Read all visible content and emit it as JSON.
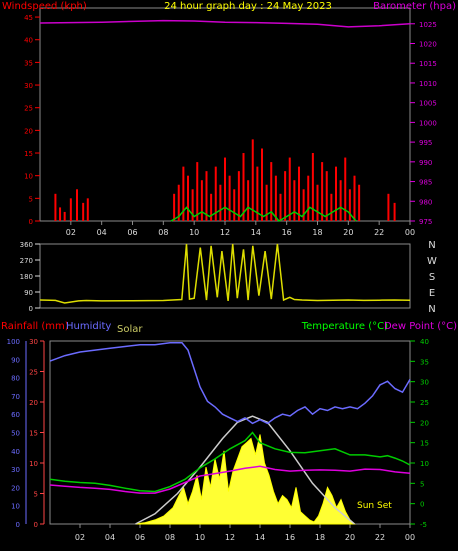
{
  "chart_data": [
    {
      "id": "wind-baro",
      "type": "line",
      "title": "24 hour graph day : 24 May 2023",
      "left_axis_label": "Windspeed (kph)",
      "right_axis_label": "Barometer (hpa)",
      "left_ticks": [
        0,
        5,
        10,
        15,
        20,
        25,
        30,
        35,
        40,
        45
      ],
      "right_ticks": [
        975,
        980,
        985,
        990,
        995,
        1000,
        1005,
        1010,
        1015,
        1020,
        1025
      ],
      "x_ticks": [
        "02",
        "04",
        "06",
        "08",
        "10",
        "12",
        "14",
        "16",
        "18",
        "20",
        "22",
        "00"
      ],
      "ylim_left": [
        0,
        47
      ],
      "ylim_right": [
        975,
        1029
      ],
      "series": [
        {
          "name": "Windspeed (kph)",
          "color": "#ff0000",
          "hours": [
            1.0,
            1.3,
            1.6,
            2.0,
            2.4,
            2.8,
            3.1,
            8.7,
            9.0,
            9.3,
            9.6,
            9.9,
            10.2,
            10.5,
            10.8,
            11.1,
            11.4,
            11.7,
            12.0,
            12.3,
            12.6,
            12.9,
            13.2,
            13.5,
            13.8,
            14.1,
            14.4,
            14.7,
            15.0,
            15.3,
            15.6,
            15.9,
            16.2,
            16.5,
            16.8,
            17.1,
            17.4,
            17.7,
            18.0,
            18.3,
            18.6,
            18.9,
            19.2,
            19.5,
            19.8,
            20.1,
            20.4,
            20.7,
            22.6,
            23.0
          ],
          "values": [
            6,
            3,
            2,
            5,
            7,
            4,
            5,
            6,
            8,
            12,
            10,
            7,
            13,
            9,
            11,
            6,
            12,
            8,
            14,
            10,
            7,
            11,
            15,
            9,
            18,
            12,
            16,
            8,
            13,
            10,
            6,
            11,
            14,
            9,
            12,
            7,
            10,
            15,
            8,
            13,
            11,
            6,
            12,
            9,
            14,
            7,
            10,
            8,
            6,
            4
          ]
        },
        {
          "name": "Wind average",
          "color": "#00cc00",
          "hours": [
            8.5,
            9,
            9.5,
            10,
            10.5,
            11,
            11.5,
            12,
            12.5,
            13,
            13.5,
            14,
            14.5,
            15,
            15.5,
            16,
            16.5,
            17,
            17.5,
            18,
            18.5,
            19,
            19.5,
            20,
            20.5
          ],
          "values": [
            0,
            1,
            3,
            1,
            2,
            1,
            2,
            3,
            2,
            1,
            3,
            2,
            1,
            2,
            0,
            1,
            2,
            1,
            3,
            2,
            1,
            2,
            3,
            2,
            0
          ]
        },
        {
          "name": "Barometer (hpa)",
          "color": "#cc00cc",
          "hours": [
            0,
            2,
            4,
            6,
            8,
            10,
            12,
            14,
            16,
            18,
            20,
            22,
            24
          ],
          "values": [
            1025.2,
            1025.3,
            1025.4,
            1025.6,
            1025.8,
            1025.7,
            1025.4,
            1025.3,
            1025.1,
            1024.9,
            1024.2,
            1024.5,
            1025.0
          ]
        }
      ]
    },
    {
      "id": "wind-dir",
      "type": "line",
      "left_ticks": [
        0,
        90,
        180,
        270,
        360
      ],
      "right_labels": [
        "N",
        "W",
        "S",
        "E",
        "N"
      ],
      "ylim": [
        0,
        360
      ],
      "series": [
        {
          "name": "Wind direction",
          "color": "#dddd00",
          "hours": [
            0,
            1.0,
            1.6,
            2.5,
            3.0,
            4,
            6,
            8,
            8.6,
            9.2,
            9.5,
            9.7,
            10,
            10.4,
            10.8,
            11.1,
            11.5,
            11.8,
            12.2,
            12.5,
            12.8,
            13.2,
            13.5,
            13.8,
            14.2,
            14.6,
            15.0,
            15.4,
            15.8,
            16.2,
            16.5,
            17,
            18,
            19,
            20,
            21,
            22,
            23,
            24
          ],
          "values": [
            45,
            43,
            28,
            40,
            42,
            40,
            41,
            42,
            45,
            48,
            360,
            50,
            55,
            340,
            45,
            350,
            60,
            320,
            40,
            360,
            55,
            330,
            45,
            350,
            70,
            320,
            50,
            360,
            45,
            60,
            48,
            45,
            42,
            44,
            45,
            43,
            44,
            45,
            44
          ]
        }
      ]
    },
    {
      "id": "temp-rain",
      "type": "area",
      "left_label_rainfall": "Rainfall (mm)",
      "left_label_humidity": "Humidity",
      "solar_label": "Solar",
      "right_label_temperature": "Temperature (°C)",
      "right_label_dewpoint": "Dew Point (°C)",
      "annotation": "Sun Set",
      "humidity_ticks": [
        0,
        10,
        20,
        30,
        40,
        50,
        60,
        70,
        80,
        90,
        100
      ],
      "rainfall_ticks": [
        0,
        5,
        10,
        15,
        20,
        25,
        30
      ],
      "temperature_ticks": [
        -5,
        0,
        5,
        10,
        15,
        20,
        25,
        30,
        35,
        40
      ],
      "x_ticks": [
        "02",
        "04",
        "06",
        "08",
        "10",
        "12",
        "14",
        "16",
        "18",
        "20",
        "22",
        "00"
      ],
      "ylim_temperature": [
        -5,
        40
      ],
      "series": [
        {
          "name": "Humidity",
          "color": "#6b6bff",
          "hours": [
            0,
            1,
            2,
            3,
            4,
            5,
            6,
            7,
            8,
            8.8,
            9.2,
            9.6,
            10,
            10.5,
            11,
            11.5,
            12,
            12.5,
            13,
            13.5,
            14,
            14.5,
            15,
            15.5,
            16,
            16.5,
            17,
            17.5,
            18,
            18.5,
            19,
            19.5,
            20,
            20.5,
            21,
            21.5,
            22,
            22.5,
            23,
            23.5,
            24
          ],
          "values": [
            89,
            92,
            94,
            95,
            96,
            97,
            98,
            98,
            99,
            99,
            95,
            85,
            75,
            67,
            64,
            60,
            58,
            56,
            58,
            55,
            57,
            55,
            58,
            60,
            59,
            62,
            64,
            60,
            63,
            62,
            64,
            63,
            64,
            63,
            66,
            70,
            76,
            78,
            74,
            72,
            79
          ]
        },
        {
          "name": "Temperature (°C)",
          "color": "#00cc00",
          "hours": [
            0,
            1,
            2,
            3,
            4,
            5,
            6,
            7,
            8,
            9,
            10,
            11,
            12,
            13,
            13.5,
            14,
            15,
            16,
            17,
            18,
            19,
            20,
            21,
            22,
            22.5,
            23,
            23.5,
            24
          ],
          "values": [
            6,
            5.5,
            5.2,
            5.0,
            4.5,
            3.8,
            3.2,
            3.0,
            4.2,
            6,
            8.8,
            11.0,
            13.5,
            15.5,
            17.5,
            15,
            13.5,
            12.6,
            12.5,
            13,
            13.5,
            12,
            12,
            11.5,
            11.8,
            11.2,
            10.5,
            9.5
          ]
        },
        {
          "name": "Dew Point (°C)",
          "color": "#dd00dd",
          "hours": [
            0,
            1,
            2,
            3,
            4,
            5,
            6,
            7,
            8,
            9,
            10,
            11,
            12,
            13,
            14,
            15,
            16,
            17,
            18,
            19,
            20,
            21,
            22,
            23,
            24
          ],
          "values": [
            4.6,
            4.3,
            4.0,
            3.8,
            3.5,
            3.0,
            2.6,
            2.6,
            3.6,
            5.2,
            6.8,
            7.4,
            8.0,
            8.7,
            9.2,
            8.4,
            8.0,
            8.2,
            8.3,
            8.2,
            8.0,
            8.5,
            8.4,
            7.8,
            7.5
          ]
        },
        {
          "name": "Solar",
          "color": "#ffff00",
          "hours": [
            5.7,
            6.3,
            7.0,
            7.6,
            8.2,
            8.6,
            8.9,
            9.2,
            9.5,
            9.8,
            10.1,
            10.4,
            10.7,
            11.0,
            11.3,
            11.6,
            11.9,
            12.2,
            12.5,
            12.8,
            13.1,
            13.4,
            13.7,
            14.0,
            14.3,
            14.6,
            14.9,
            15.2,
            15.5,
            15.8,
            16.1,
            16.4,
            16.7,
            17.0,
            17.3,
            17.6,
            17.9,
            18.2,
            18.5,
            18.8,
            19.1,
            19.4,
            19.7,
            20.0,
            20.3
          ],
          "values": [
            0,
            0.3,
            1,
            2,
            4,
            7,
            9,
            5,
            8,
            12,
            6,
            14,
            9,
            16,
            11,
            18,
            8,
            13,
            16,
            19,
            20,
            21,
            17,
            22,
            15,
            12,
            8,
            5,
            7,
            6,
            4,
            9,
            3,
            2,
            1,
            0.5,
            2,
            5,
            9,
            7,
            4,
            6,
            3,
            1,
            0
          ]
        },
        {
          "name": "Solar envelope",
          "color": "#cccccc",
          "hours": [
            5.7,
            7,
            8.5,
            10,
            11.5,
            12.5,
            13.5,
            14.5,
            16,
            17.5,
            19,
            20.3
          ],
          "values": [
            -5,
            -2.5,
            2.5,
            9,
            16,
            20,
            21.5,
            20,
            13,
            5,
            -1,
            -5
          ]
        }
      ]
    }
  ]
}
